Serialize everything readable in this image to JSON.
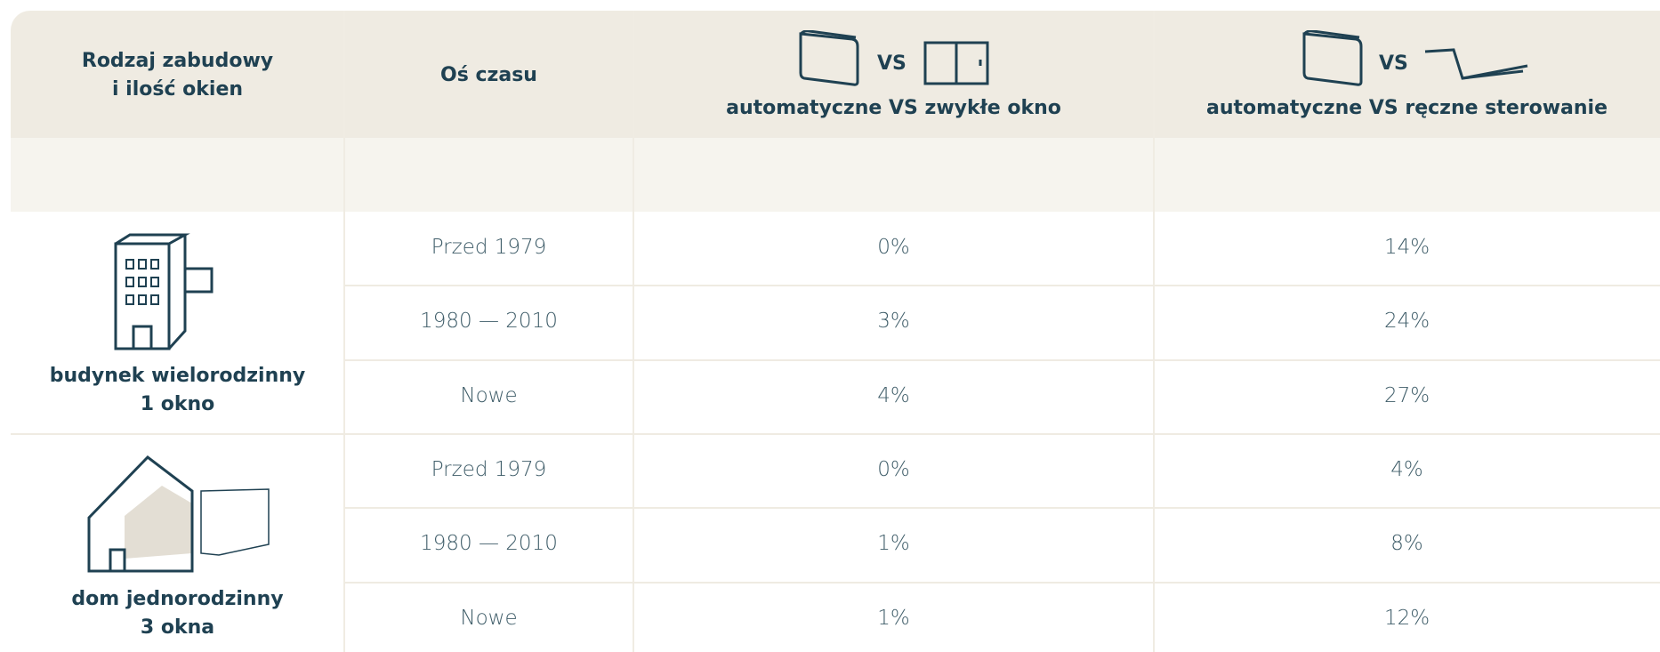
{
  "header": {
    "columns": [
      [
        "Rodzaj zabudowy",
        "i ilość okien"
      ],
      [
        "Oś czasu"
      ],
      [
        "VS",
        "automatyczne VS zwykłe okno"
      ],
      [
        "VS",
        "automatyczne VS ręczne sterowanie"
      ]
    ]
  },
  "groups": [
    {
      "label": [
        "budynek wielorodzinny",
        "1 okno"
      ],
      "rows": [
        [
          "Przed 1979",
          "0%",
          "14%"
        ],
        [
          "1980 — 2010",
          "3%",
          "24%"
        ],
        [
          "Nowe",
          "4%",
          "27%"
        ]
      ]
    },
    {
      "label": [
        "dom jednorodzinny",
        "3 okna"
      ],
      "rows": [
        [
          "Przed 1979",
          "0%",
          "4%"
        ],
        [
          "1980 — 2010",
          "1%",
          "8%"
        ],
        [
          "Nowe",
          "1%",
          "12%"
        ]
      ]
    }
  ]
}
